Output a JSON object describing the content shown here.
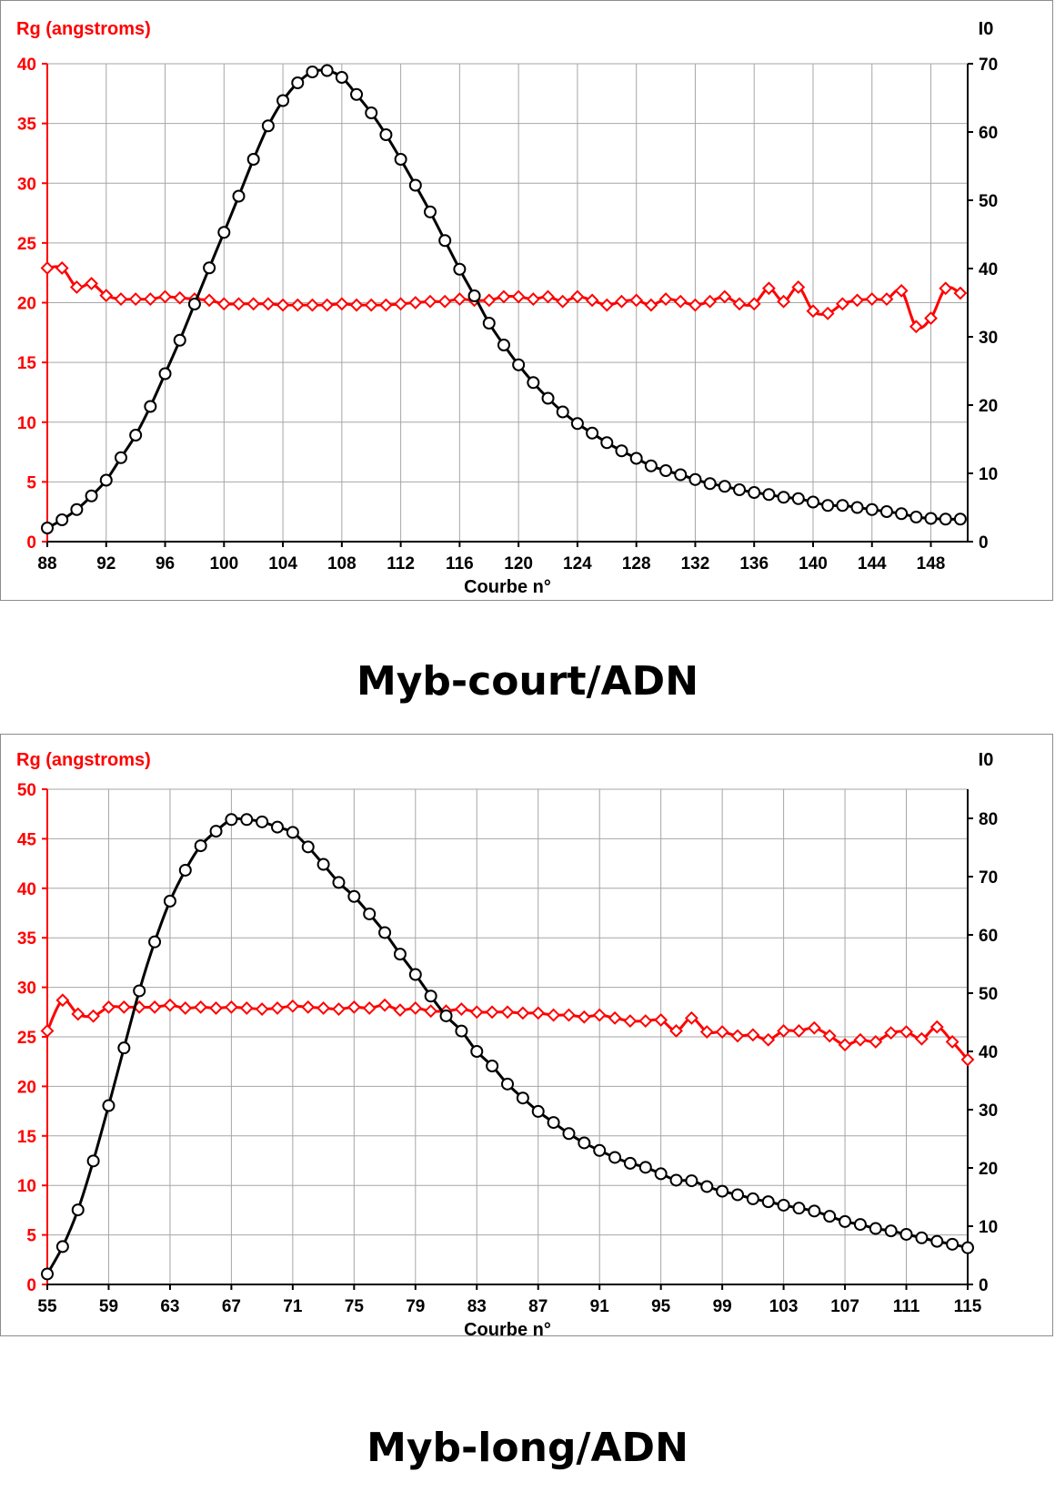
{
  "chart_data": [
    {
      "type": "line",
      "title": "",
      "caption": "Myb-court/ADN",
      "xlabel": "Courbe n°",
      "x_ticks": [
        88,
        92,
        96,
        100,
        104,
        108,
        112,
        116,
        120,
        124,
        128,
        132,
        136,
        140,
        144,
        148
      ],
      "xlim": [
        88,
        150.5
      ],
      "y_left": {
        "label": "Rg (angstroms)",
        "ylim": [
          0,
          40
        ],
        "ticks": [
          0,
          5,
          10,
          15,
          20,
          25,
          30,
          35,
          40
        ],
        "color": "#ff0000"
      },
      "y_right": {
        "label": "I0",
        "ylim": [
          0,
          70
        ],
        "ticks": [
          0,
          10,
          20,
          30,
          40,
          50,
          60,
          70
        ],
        "color": "#000000"
      },
      "grid": true,
      "series": [
        {
          "axis": "left",
          "marker": "diamond",
          "color": "#ff0000",
          "x": [
            88,
            89,
            90,
            91,
            92,
            93,
            94,
            95,
            96,
            97,
            98,
            99,
            100,
            101,
            102,
            103,
            104,
            105,
            106,
            107,
            108,
            109,
            110,
            111,
            112,
            113,
            114,
            115,
            116,
            117,
            118,
            119,
            120,
            121,
            122,
            123,
            124,
            125,
            126,
            127,
            128,
            129,
            130,
            131,
            132,
            133,
            134,
            135,
            136,
            137,
            138,
            139,
            140,
            141,
            142,
            143,
            144,
            145,
            146,
            147,
            148,
            149,
            150
          ],
          "values": [
            22.9,
            22.9,
            21.3,
            21.6,
            20.6,
            20.3,
            20.3,
            20.3,
            20.5,
            20.4,
            20.3,
            20.2,
            19.9,
            19.9,
            19.9,
            19.9,
            19.8,
            19.8,
            19.8,
            19.8,
            19.9,
            19.8,
            19.8,
            19.8,
            19.9,
            20.0,
            20.1,
            20.1,
            20.3,
            20.2,
            20.2,
            20.5,
            20.5,
            20.3,
            20.5,
            20.1,
            20.5,
            20.2,
            19.8,
            20.1,
            20.2,
            19.8,
            20.3,
            20.1,
            19.8,
            20.1,
            20.5,
            19.9,
            19.9,
            21.2,
            20.1,
            21.3,
            19.3,
            19.1,
            19.9,
            20.2,
            20.3,
            20.3,
            21.0,
            18.0,
            18.7,
            21.2,
            20.8
          ]
        },
        {
          "axis": "right",
          "marker": "circle",
          "color": "#000000",
          "x": [
            88,
            89,
            90,
            91,
            92,
            93,
            94,
            95,
            96,
            97,
            98,
            99,
            100,
            101,
            102,
            103,
            104,
            105,
            106,
            107,
            108,
            109,
            110,
            111,
            112,
            113,
            114,
            115,
            116,
            117,
            118,
            119,
            120,
            121,
            122,
            123,
            124,
            125,
            126,
            127,
            128,
            129,
            130,
            131,
            132,
            133,
            134,
            135,
            136,
            137,
            138,
            139,
            140,
            141,
            142,
            143,
            144,
            145,
            146,
            147,
            148,
            149,
            150
          ],
          "values": [
            2.0,
            3.2,
            4.7,
            6.7,
            9.0,
            12.3,
            15.6,
            19.8,
            24.6,
            29.5,
            34.8,
            40.1,
            45.3,
            50.6,
            56.0,
            60.9,
            64.6,
            67.2,
            68.8,
            69.0,
            68.0,
            65.5,
            62.8,
            59.6,
            56.0,
            52.2,
            48.3,
            44.1,
            39.9,
            36.0,
            32.0,
            28.8,
            25.9,
            23.3,
            21.0,
            19.0,
            17.3,
            15.9,
            14.5,
            13.3,
            12.2,
            11.1,
            10.4,
            9.8,
            9.1,
            8.5,
            8.1,
            7.6,
            7.2,
            6.9,
            6.5,
            6.3,
            5.8,
            5.3,
            5.3,
            5.0,
            4.7,
            4.4,
            4.1,
            3.6,
            3.4,
            3.3,
            3.3
          ]
        }
      ]
    },
    {
      "type": "line",
      "title": "",
      "caption": "Myb-long/ADN",
      "xlabel": "Courbe n°",
      "x_ticks": [
        55,
        59,
        63,
        67,
        71,
        75,
        79,
        83,
        87,
        91,
        95,
        99,
        103,
        107,
        111,
        115
      ],
      "xlim": [
        55,
        115
      ],
      "y_left": {
        "label": "Rg (angstroms)",
        "ylim": [
          0,
          50
        ],
        "ticks": [
          0,
          5,
          10,
          15,
          20,
          25,
          30,
          35,
          40,
          45,
          50
        ],
        "color": "#ff0000"
      },
      "y_right": {
        "label": "I0",
        "ylim": [
          0,
          85
        ],
        "ticks": [
          0,
          10,
          20,
          30,
          40,
          50,
          60,
          70,
          80
        ],
        "color": "#000000"
      },
      "grid": true,
      "series": [
        {
          "axis": "left",
          "marker": "diamond",
          "color": "#ff0000",
          "x": [
            55,
            56,
            57,
            58,
            59,
            60,
            61,
            62,
            63,
            64,
            65,
            66,
            67,
            68,
            69,
            70,
            71,
            72,
            73,
            74,
            75,
            76,
            77,
            78,
            79,
            80,
            81,
            82,
            83,
            84,
            85,
            86,
            87,
            88,
            89,
            90,
            91,
            92,
            93,
            94,
            95,
            96,
            97,
            98,
            99,
            100,
            101,
            102,
            103,
            104,
            105,
            106,
            107,
            108,
            109,
            110,
            111,
            112,
            113,
            114,
            115
          ],
          "values": [
            25.6,
            28.7,
            27.3,
            27.1,
            28.0,
            28.0,
            28.0,
            28.0,
            28.2,
            27.9,
            28.0,
            27.9,
            28.0,
            27.9,
            27.8,
            27.9,
            28.1,
            28.0,
            27.9,
            27.8,
            28.0,
            27.9,
            28.2,
            27.7,
            27.9,
            27.6,
            27.6,
            27.8,
            27.5,
            27.5,
            27.5,
            27.4,
            27.4,
            27.2,
            27.2,
            27.0,
            27.2,
            26.9,
            26.6,
            26.6,
            26.7,
            25.6,
            26.9,
            25.5,
            25.5,
            25.1,
            25.2,
            24.7,
            25.6,
            25.6,
            25.9,
            25.1,
            24.2,
            24.7,
            24.5,
            25.4,
            25.5,
            24.8,
            26.0,
            24.5,
            22.7
          ]
        },
        {
          "axis": "right",
          "marker": "circle",
          "color": "#000000",
          "x": [
            55,
            56,
            57,
            58,
            59,
            60,
            61,
            62,
            63,
            64,
            65,
            66,
            67,
            68,
            69,
            70,
            71,
            72,
            73,
            74,
            75,
            76,
            77,
            78,
            79,
            80,
            81,
            82,
            83,
            84,
            85,
            86,
            87,
            88,
            89,
            90,
            91,
            92,
            93,
            94,
            95,
            96,
            97,
            98,
            99,
            100,
            101,
            102,
            103,
            104,
            105,
            106,
            107,
            108,
            109,
            110,
            111,
            112,
            113,
            114,
            115
          ],
          "values": [
            1.8,
            6.5,
            12.8,
            21.2,
            30.7,
            40.6,
            50.4,
            58.8,
            65.8,
            71.1,
            75.3,
            77.8,
            79.8,
            79.8,
            79.4,
            78.5,
            77.6,
            75.1,
            72.1,
            69.0,
            66.6,
            63.6,
            60.4,
            56.7,
            53.2,
            49.5,
            46.1,
            43.5,
            40.0,
            37.5,
            34.4,
            32.0,
            29.7,
            27.8,
            25.9,
            24.3,
            23.0,
            21.8,
            20.8,
            20.1,
            19.0,
            17.9,
            17.8,
            16.8,
            16.0,
            15.4,
            14.7,
            14.2,
            13.6,
            13.1,
            12.6,
            11.7,
            10.8,
            10.3,
            9.6,
            9.2,
            8.6,
            8.0,
            7.4,
            6.9,
            6.3
          ]
        }
      ]
    }
  ]
}
